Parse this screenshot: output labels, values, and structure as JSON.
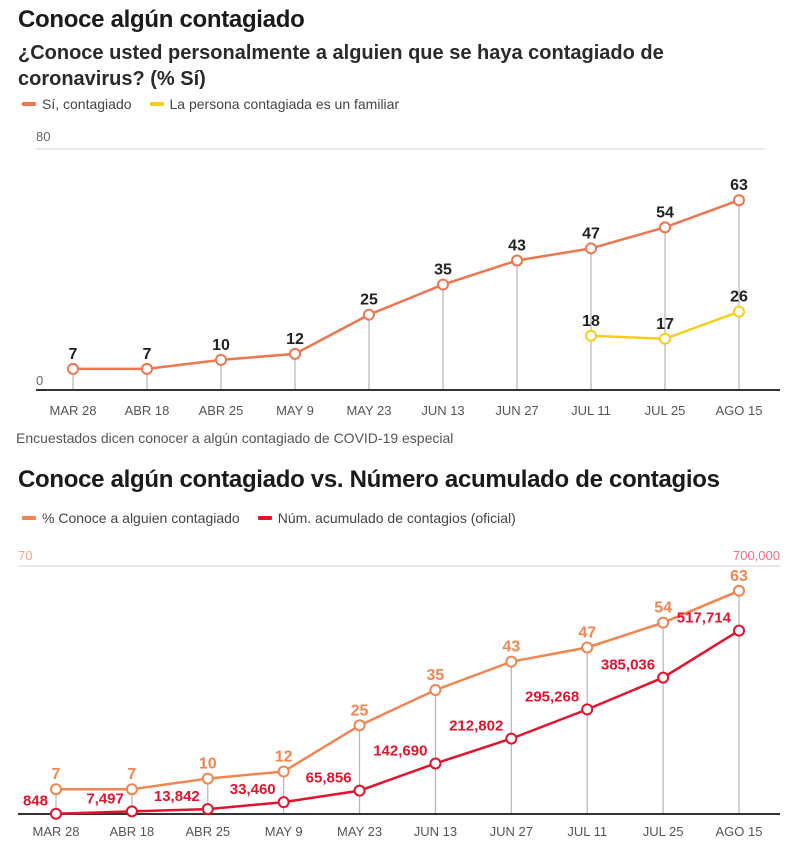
{
  "chart_data": [
    {
      "type": "line",
      "title": "Conoce algún contagiado",
      "subtitle": "¿Conoce usted personalmente a alguien que se haya contagiado de coronavirus?  (% Sí)",
      "categories": [
        "MAR 28",
        "ABR 18",
        "ABR 25",
        "MAY 9",
        "MAY 23",
        "JUN 13",
        "JUN 27",
        "JUL 11",
        "JUL 25",
        "AGO 15"
      ],
      "series": [
        {
          "name": "Sí, contagiado",
          "color": "#ec7650",
          "values": [
            7,
            7,
            10,
            12,
            25,
            35,
            43,
            47,
            54,
            63
          ]
        },
        {
          "name": "La persona contagiada es un familiar",
          "color": "#f5cf1c",
          "values": [
            null,
            null,
            null,
            null,
            null,
            null,
            null,
            18,
            17,
            26
          ]
        }
      ],
      "ylim": [
        0,
        80
      ],
      "ytick_labels": [
        "0",
        "80"
      ],
      "xlabel": "",
      "ylabel": "",
      "legend": "top-left",
      "note": "Encuestados dicen conocer a algún contagiado de COVID-19 especial"
    },
    {
      "type": "line",
      "title": "Conoce algún contagiado vs. Número acumulado de contagios",
      "categories": [
        "MAR 28",
        "ABR 18",
        "ABR 25",
        "MAY 9",
        "MAY 23",
        "JUN 13",
        "JUN 27",
        "JUL 11",
        "JUL 25",
        "AGO 15"
      ],
      "series": [
        {
          "name": "% Conoce a alguien contagiado",
          "color": "#f08550",
          "axis": "left",
          "values": [
            7,
            7,
            10,
            12,
            25,
            35,
            43,
            47,
            54,
            63
          ],
          "labels": [
            "7",
            "7",
            "10",
            "12",
            "25",
            "35",
            "43",
            "47",
            "54",
            "63"
          ]
        },
        {
          "name": "Núm. acumulado de contagios (oficial)",
          "color": "#e2142d",
          "axis": "right",
          "values": [
            848,
            7497,
            13842,
            33460,
            65856,
            142690,
            212802,
            295268,
            385036,
            517714
          ],
          "labels": [
            "848",
            "7,497",
            "13,842",
            "33,460",
            "65,856",
            "142,690",
            "212,802",
            "295,268",
            "385,036",
            "517,714"
          ]
        }
      ],
      "ylim_left": [
        0,
        70
      ],
      "ylim_right": [
        0,
        700000
      ],
      "ytick_left_label": "70",
      "ytick_right_label": "700,000",
      "xlabel": "",
      "ylabel": "",
      "legend": "top-left"
    }
  ]
}
